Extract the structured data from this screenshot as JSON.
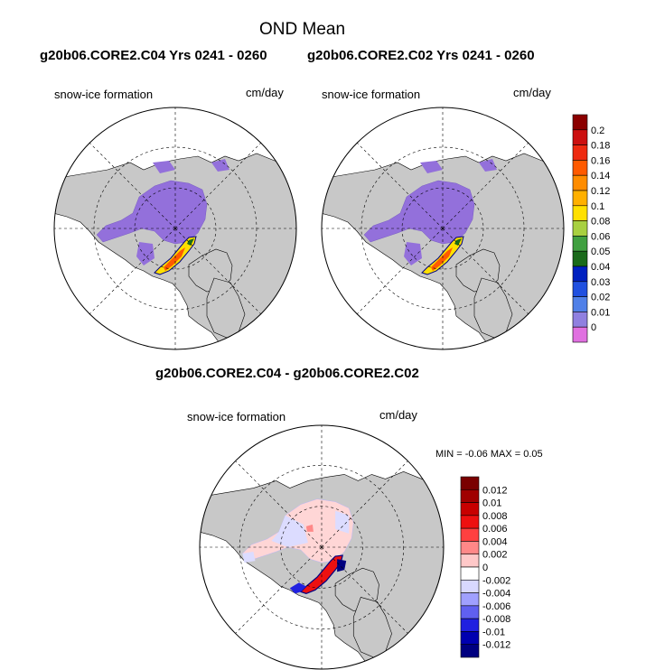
{
  "title": "OND Mean",
  "subtitle_left": "g20b06.CORE2.C04  Yrs 0241 - 0260",
  "subtitle_right": "g20b06.CORE2.C02  Yrs 0241 - 0260",
  "diff_title": "g20b06.CORE2.C04 - g20b06.CORE2.C02",
  "panels": [
    {
      "label": "snow-ice formation",
      "units": "cm/day"
    },
    {
      "label": "snow-ice formation",
      "units": "cm/day"
    },
    {
      "label": "snow-ice formation",
      "units": "cm/day"
    }
  ],
  "minmax": {
    "min_label": "MIN =",
    "min_value": "-0.06",
    "max_label": "MAX =",
    "max_value": "0.05"
  },
  "colorbar_top": {
    "labels": [
      "0.2",
      "0.18",
      "0.16",
      "0.14",
      "0.12",
      "0.1",
      "0.08",
      "0.06",
      "0.05",
      "0.04",
      "0.03",
      "0.02",
      "0.01",
      "0"
    ],
    "colors": [
      "#8b0000",
      "#cc1010",
      "#ee2a10",
      "#ff5a00",
      "#ff8c00",
      "#ffb000",
      "#ffe000",
      "#a8d040",
      "#40a040",
      "#1a6a1a",
      "#0020c0",
      "#2050e0",
      "#5080e8",
      "#9080e0",
      "#e070e0"
    ]
  },
  "colorbar_bottom": {
    "labels": [
      "0.012",
      "0.01",
      "0.008",
      "0.006",
      "0.004",
      "0.002",
      "0",
      "-0.002",
      "-0.004",
      "-0.006",
      "-0.008",
      "-0.01",
      "-0.012"
    ],
    "colors": [
      "#7a0000",
      "#a00000",
      "#c80000",
      "#ee1010",
      "#ff4040",
      "#ff8888",
      "#ffc8c8",
      "#ffffff",
      "#d8d8ff",
      "#a0a0ff",
      "#6060f0",
      "#2020e0",
      "#0000b0",
      "#000080"
    ]
  },
  "colors": {
    "land": "#c8c8c8",
    "ocean": "#ffffff",
    "ice_purple": "#9370db",
    "diff_pink": "#ffd6d6",
    "diff_blue": "#dcdcff"
  }
}
